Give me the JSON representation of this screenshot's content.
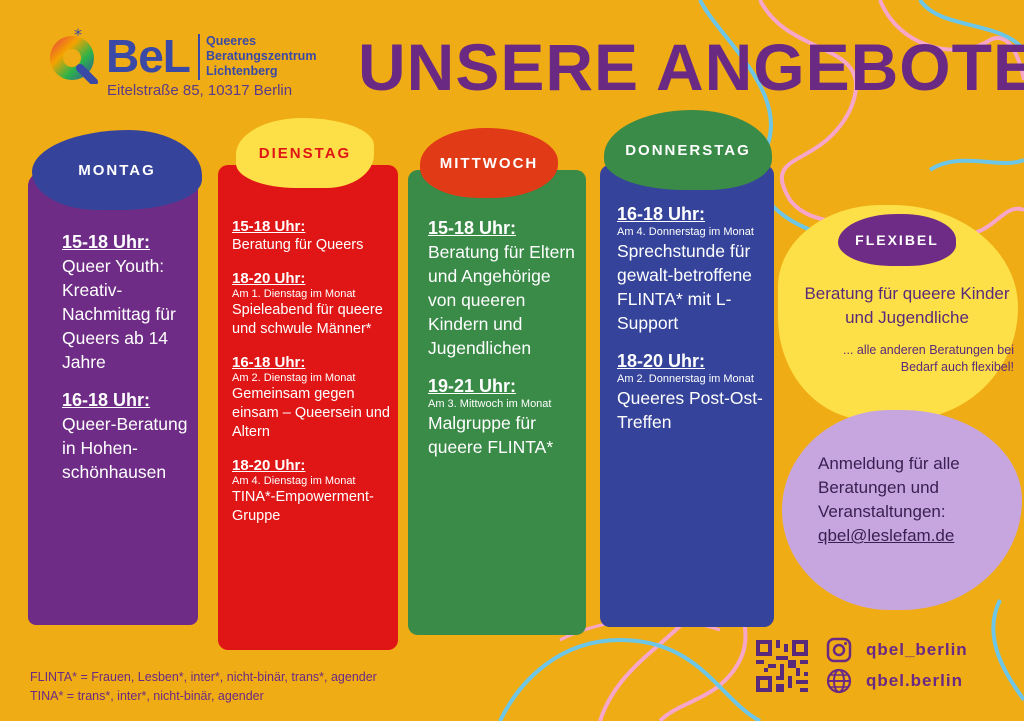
{
  "header": {
    "logo_text": "BeL",
    "logo_name": "Queeres\nBeratungszentrum\nLichtenberg",
    "address": "Eitelstraße 85, 10317 Berlin",
    "title": "UNSERE ANGEBOTE"
  },
  "days": {
    "montag": {
      "label": "MONTAG",
      "items": [
        {
          "time": "15-18 Uhr:",
          "text": "Queer Youth: Kreativ-Nachmittag für Queers ab 14 Jahre"
        },
        {
          "time": "16-18 Uhr:",
          "text": "Queer-Beratung in Hohen-schönhausen"
        }
      ]
    },
    "dienstag": {
      "label": "DIENSTAG",
      "items": [
        {
          "time": "15-18 Uhr:",
          "note": "",
          "text": "Beratung für Queers"
        },
        {
          "time": "18-20 Uhr:",
          "note": "Am 1. Dienstag im Monat",
          "text": "Spieleabend für queere und schwule Männer*"
        },
        {
          "time": "16-18 Uhr:",
          "note": "Am 2. Dienstag im Monat",
          "text": "Gemeinsam gegen einsam – Queersein und Altern"
        },
        {
          "time": "18-20 Uhr:",
          "note": "Am 4. Dienstag im Monat",
          "text": "TINA*-Empowerment-Gruppe"
        }
      ]
    },
    "mittwoch": {
      "label": "MITTWOCH",
      "items": [
        {
          "time": "15-18 Uhr:",
          "note": "",
          "text": "Beratung für Eltern und Angehörige von queeren Kindern und Jugendlichen"
        },
        {
          "time": "19-21 Uhr:",
          "note": "Am 3. Mittwoch im Monat",
          "text": "Malgruppe für queere FLINTA*"
        }
      ]
    },
    "donnerstag": {
      "label": "DONNERSTAG",
      "items": [
        {
          "time": "16-18 Uhr:",
          "note": "Am 4. Donnerstag im Monat",
          "text": "Sprechstunde für gewalt-betroffene FLINTA* mit L-Support"
        },
        {
          "time": "18-20 Uhr:",
          "note": "Am 2. Donnerstag im Monat",
          "text": "Queeres Post-Ost-Treffen"
        }
      ]
    }
  },
  "flexibel": {
    "label": "FLEXIBEL",
    "main": "Beratung für queere Kinder und Jugendliche",
    "note": "... alle anderen Beratungen bei Bedarf auch flexibel!"
  },
  "registration": {
    "text": "Anmeldung für alle Beratungen und Veranstaltungen:",
    "email": "qbel@leslefam.de"
  },
  "footnotes": {
    "flinta": "FLINTA* = Frauen, Lesben*, inter*, nicht-binär, trans*, agender",
    "tina": "TINA* = trans*, inter*, nicht-binär, agender"
  },
  "social": {
    "instagram": "qbel_berlin",
    "website": "qbel.berlin",
    "instagram_icon": "instagram-icon",
    "website_icon": "globe-icon"
  },
  "colors": {
    "background": "#f0ac14",
    "purple": "#6f2c86",
    "red": "#e01616",
    "green": "#3a8a48",
    "blue": "#35449a",
    "yellow": "#fde047",
    "lavender": "#c7a6e0"
  }
}
